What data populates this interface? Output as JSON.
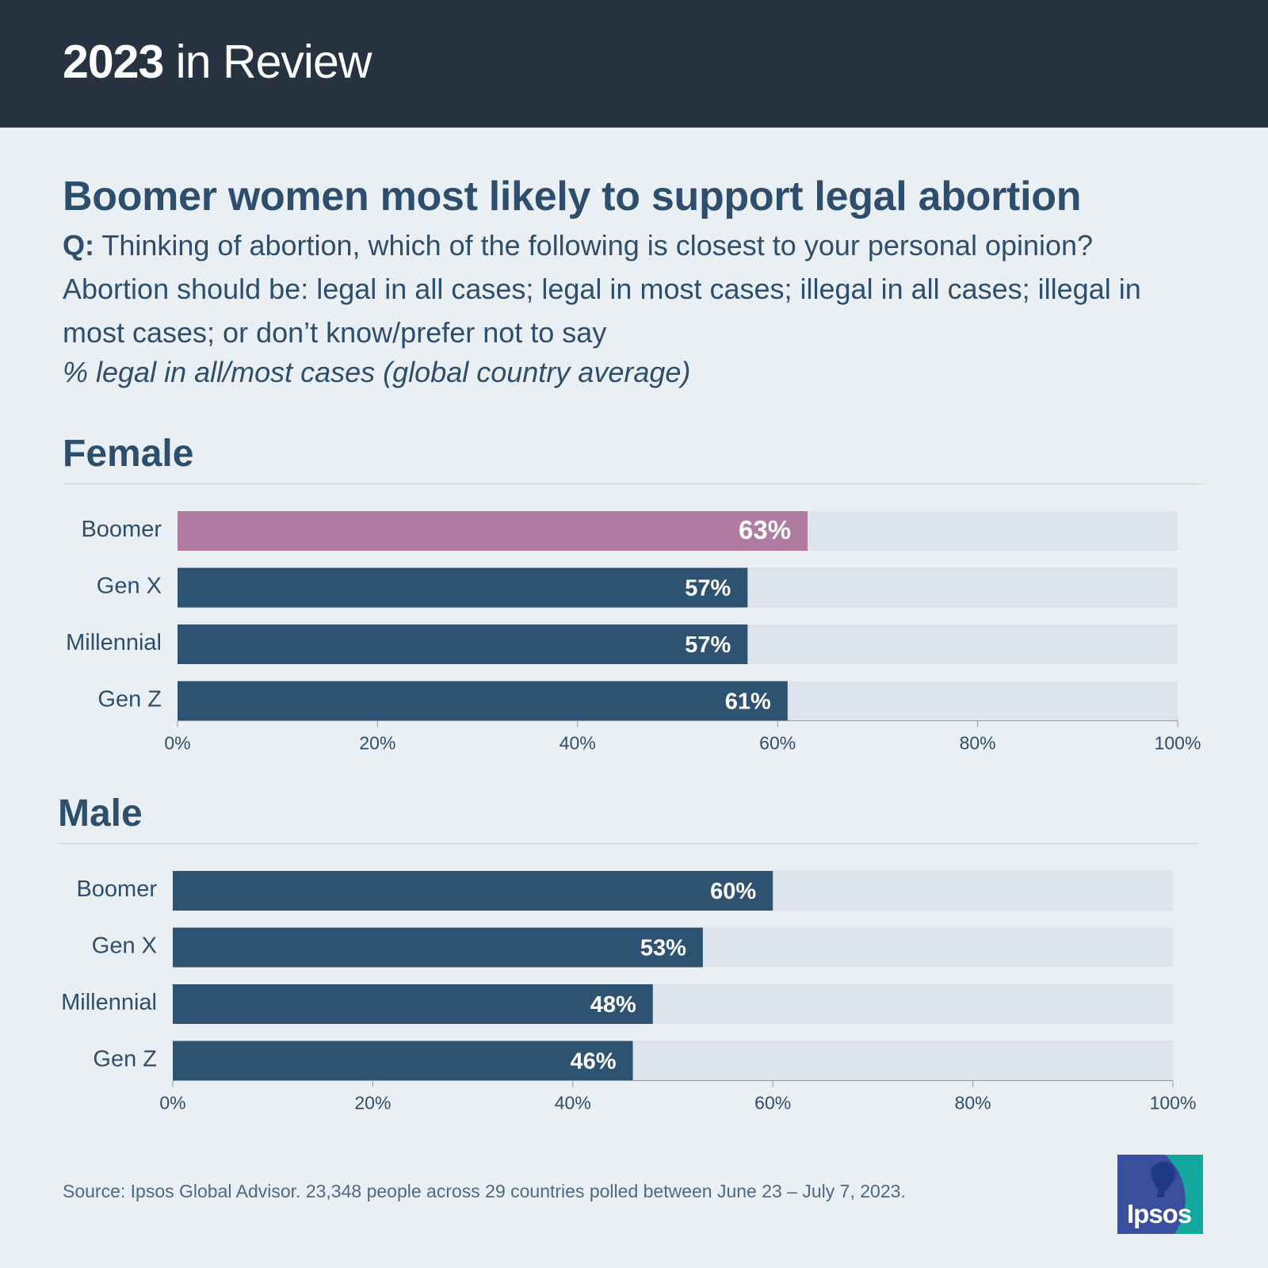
{
  "header": {
    "title_bold": "2023",
    "title_rest": " in Review"
  },
  "headline": "Boomer women most likely to support legal abortion",
  "question": {
    "prefix": "Q:",
    "text": " Thinking of abortion, which of the following is closest to your personal opinion? Abortion should be: legal in all cases; legal in most cases; illegal in all cases; illegal in most cases; or don’t know/prefer not to say"
  },
  "measure_note": "% legal in all/most cases (global country average)",
  "colors": {
    "highlight_bar": "#af7ba1",
    "bar": "#2e5272",
    "track": "#dde4eb",
    "text": "#2e4e6e",
    "header_bg": "#283341"
  },
  "chart_data": [
    {
      "type": "bar",
      "orientation": "horizontal",
      "title": "Female",
      "categories": [
        "Boomer",
        "Gen X",
        "Millennial",
        "Gen Z"
      ],
      "values": [
        63,
        57,
        57,
        61
      ],
      "labels": [
        "63%",
        "57%",
        "57%",
        "61%"
      ],
      "highlight_index": 0,
      "xlim": [
        0,
        100
      ],
      "ticks": [
        0,
        20,
        40,
        60,
        80,
        100
      ],
      "tick_labels": [
        "0%",
        "20%",
        "40%",
        "60%",
        "80%",
        "100%"
      ],
      "grid": false
    },
    {
      "type": "bar",
      "orientation": "horizontal",
      "title": "Male",
      "categories": [
        "Boomer",
        "Gen X",
        "Millennial",
        "Gen Z"
      ],
      "values": [
        60,
        53,
        48,
        46
      ],
      "labels": [
        "60%",
        "53%",
        "48%",
        "46%"
      ],
      "highlight_index": -1,
      "xlim": [
        0,
        100
      ],
      "ticks": [
        0,
        20,
        40,
        60,
        80,
        100
      ],
      "tick_labels": [
        "0%",
        "20%",
        "40%",
        "60%",
        "80%",
        "100%"
      ],
      "grid": false
    }
  ],
  "source": "Source: Ipsos Global Advisor. 23,348 people across 29 countries polled between June 23 – July 7, 2023.",
  "logo": {
    "text": "Ipsos",
    "icon": "ipsos-logo-icon"
  }
}
